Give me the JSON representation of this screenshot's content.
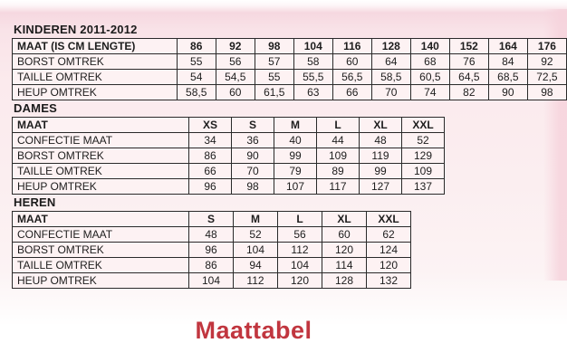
{
  "page": {
    "title": "Maattabel",
    "accent_color": "#c1363f",
    "background_pink": "#f9e3e8",
    "cell_background": "#fdf2f3"
  },
  "tables": [
    {
      "section": "KINDEREN 2011-2012",
      "header_label": "MAAT (IS CM LENGTE)",
      "columns": [
        "86",
        "92",
        "98",
        "104",
        "116",
        "128",
        "140",
        "152",
        "164",
        "176"
      ],
      "rows": [
        {
          "label": "BORST OMTREK",
          "values": [
            "55",
            "56",
            "57",
            "58",
            "60",
            "64",
            "68",
            "76",
            "84",
            "92"
          ]
        },
        {
          "label": "TAILLE OMTREK",
          "values": [
            "54",
            "54,5",
            "55",
            "55,5",
            "56,5",
            "58,5",
            "60,5",
            "64,5",
            "68,5",
            "72,5"
          ]
        },
        {
          "label": "HEUP OMTREK",
          "values": [
            "58,5",
            "60",
            "61,5",
            "63",
            "66",
            "70",
            "74",
            "82",
            "90",
            "98"
          ]
        }
      ]
    },
    {
      "section": "DAMES",
      "header_label": "MAAT",
      "columns": [
        "XS",
        "S",
        "M",
        "L",
        "XL",
        "XXL"
      ],
      "rows": [
        {
          "label": "CONFECTIE MAAT",
          "values": [
            "34",
            "36",
            "40",
            "44",
            "48",
            "52"
          ]
        },
        {
          "label": "BORST OMTREK",
          "values": [
            "86",
            "90",
            "99",
            "109",
            "119",
            "129"
          ]
        },
        {
          "label": "TAILLE OMTREK",
          "values": [
            "66",
            "70",
            "79",
            "89",
            "99",
            "109"
          ]
        },
        {
          "label": "HEUP OMTREK",
          "values": [
            "96",
            "98",
            "107",
            "117",
            "127",
            "137"
          ]
        }
      ]
    },
    {
      "section": "HEREN",
      "header_label": "MAAT",
      "columns": [
        "S",
        "M",
        "L",
        "XL",
        "XXL"
      ],
      "rows": [
        {
          "label": "CONFECTIE MAAT",
          "values": [
            "48",
            "52",
            "56",
            "60",
            "62"
          ]
        },
        {
          "label": "BORST OMTREK",
          "values": [
            "96",
            "104",
            "112",
            "120",
            "124"
          ]
        },
        {
          "label": "TAILLE OMTREK",
          "values": [
            "86",
            "94",
            "104",
            "114",
            "120"
          ]
        },
        {
          "label": "HEUP OMTREK",
          "values": [
            "104",
            "112",
            "120",
            "128",
            "132"
          ]
        }
      ]
    }
  ]
}
